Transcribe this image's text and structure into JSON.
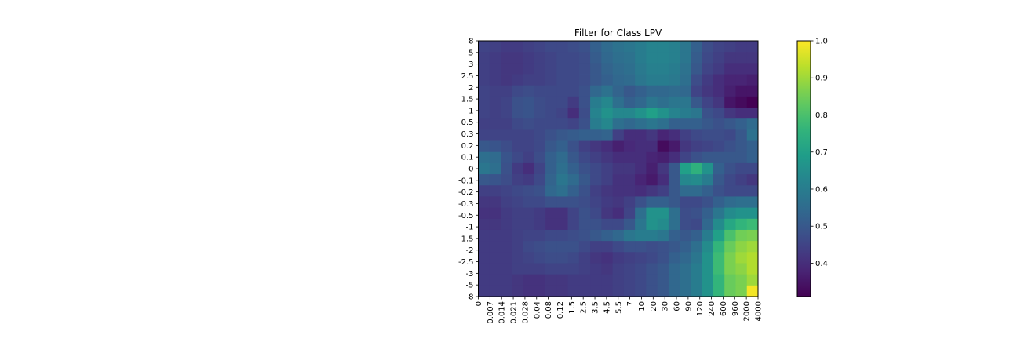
{
  "chart_data": {
    "type": "heatmap",
    "title": "Filter for Class LPV",
    "xlabel": "",
    "ylabel": "",
    "x_labels": [
      "0",
      "0.007",
      "0.014",
      "0.021",
      "0.028",
      "0.04",
      "0.08",
      "0.12",
      "1.5",
      "2.5",
      "3.5",
      "4.5",
      "5.5",
      "7",
      "10",
      "20",
      "30",
      "60",
      "90",
      "120",
      "240",
      "600",
      "960",
      "2000",
      "4000"
    ],
    "y_labels": [
      "8",
      "5",
      "3",
      "2.5",
      "2",
      "1.5",
      "1",
      "0.5",
      "0.3",
      "0.2",
      "0.1",
      "0",
      "-0.1",
      "-0.2",
      "-0.3",
      "-0.5",
      "-1",
      "-1.5",
      "-2",
      "-2.5",
      "-3",
      "-5",
      "-8"
    ],
    "colormap": "viridis",
    "colorbar": {
      "min": 0.31,
      "max": 1.0,
      "ticks": [
        "0.4",
        "0.5",
        "0.6",
        "0.7",
        "0.8",
        "0.9",
        "1.0"
      ],
      "tick_values": [
        0.4,
        0.5,
        0.6,
        0.7,
        0.8,
        0.9,
        1.0
      ]
    },
    "values": [
      [
        0.45,
        0.44,
        0.43,
        0.43,
        0.44,
        0.45,
        0.46,
        0.46,
        0.47,
        0.48,
        0.52,
        0.55,
        0.57,
        0.58,
        0.6,
        0.62,
        0.62,
        0.61,
        0.58,
        0.52,
        0.47,
        0.45,
        0.44,
        0.43,
        0.43
      ],
      [
        0.44,
        0.43,
        0.42,
        0.42,
        0.43,
        0.44,
        0.45,
        0.46,
        0.46,
        0.47,
        0.51,
        0.54,
        0.56,
        0.57,
        0.6,
        0.62,
        0.62,
        0.61,
        0.58,
        0.51,
        0.46,
        0.44,
        0.42,
        0.42,
        0.42
      ],
      [
        0.44,
        0.43,
        0.42,
        0.42,
        0.43,
        0.44,
        0.45,
        0.46,
        0.46,
        0.47,
        0.5,
        0.53,
        0.55,
        0.56,
        0.59,
        0.61,
        0.61,
        0.6,
        0.57,
        0.5,
        0.45,
        0.43,
        0.4,
        0.4,
        0.4
      ],
      [
        0.44,
        0.43,
        0.42,
        0.43,
        0.44,
        0.44,
        0.45,
        0.46,
        0.46,
        0.47,
        0.5,
        0.52,
        0.54,
        0.55,
        0.58,
        0.6,
        0.6,
        0.59,
        0.56,
        0.47,
        0.43,
        0.4,
        0.38,
        0.38,
        0.37
      ],
      [
        0.45,
        0.44,
        0.44,
        0.46,
        0.47,
        0.46,
        0.46,
        0.46,
        0.46,
        0.48,
        0.54,
        0.57,
        0.53,
        0.5,
        0.52,
        0.54,
        0.54,
        0.55,
        0.54,
        0.45,
        0.42,
        0.4,
        0.37,
        0.35,
        0.35
      ],
      [
        0.45,
        0.44,
        0.45,
        0.48,
        0.49,
        0.47,
        0.46,
        0.46,
        0.43,
        0.48,
        0.6,
        0.63,
        0.56,
        0.52,
        0.54,
        0.58,
        0.56,
        0.58,
        0.58,
        0.5,
        0.45,
        0.42,
        0.35,
        0.33,
        0.31
      ],
      [
        0.45,
        0.44,
        0.45,
        0.48,
        0.49,
        0.47,
        0.46,
        0.45,
        0.4,
        0.47,
        0.62,
        0.66,
        0.63,
        0.63,
        0.66,
        0.7,
        0.66,
        0.62,
        0.6,
        0.58,
        0.48,
        0.46,
        0.42,
        0.4,
        0.4
      ],
      [
        0.44,
        0.44,
        0.44,
        0.46,
        0.47,
        0.46,
        0.46,
        0.46,
        0.45,
        0.48,
        0.6,
        0.63,
        0.56,
        0.54,
        0.56,
        0.58,
        0.56,
        0.52,
        0.52,
        0.52,
        0.5,
        0.48,
        0.5,
        0.52,
        0.55
      ],
      [
        0.45,
        0.45,
        0.45,
        0.45,
        0.45,
        0.46,
        0.48,
        0.5,
        0.51,
        0.52,
        0.52,
        0.53,
        0.44,
        0.4,
        0.4,
        0.42,
        0.38,
        0.4,
        0.44,
        0.46,
        0.47,
        0.47,
        0.46,
        0.5,
        0.57
      ],
      [
        0.5,
        0.49,
        0.47,
        0.45,
        0.45,
        0.46,
        0.5,
        0.52,
        0.48,
        0.44,
        0.42,
        0.4,
        0.37,
        0.39,
        0.4,
        0.4,
        0.33,
        0.36,
        0.42,
        0.44,
        0.45,
        0.46,
        0.48,
        0.5,
        0.52
      ],
      [
        0.56,
        0.55,
        0.49,
        0.46,
        0.44,
        0.47,
        0.52,
        0.55,
        0.5,
        0.46,
        0.44,
        0.42,
        0.4,
        0.4,
        0.4,
        0.38,
        0.37,
        0.4,
        0.45,
        0.48,
        0.5,
        0.5,
        0.5,
        0.5,
        0.52
      ],
      [
        0.58,
        0.56,
        0.48,
        0.43,
        0.4,
        0.45,
        0.52,
        0.56,
        0.52,
        0.48,
        0.46,
        0.44,
        0.42,
        0.42,
        0.4,
        0.37,
        0.42,
        0.5,
        0.7,
        0.75,
        0.66,
        0.52,
        0.48,
        0.46,
        0.46
      ],
      [
        0.5,
        0.49,
        0.47,
        0.44,
        0.43,
        0.46,
        0.53,
        0.58,
        0.55,
        0.5,
        0.46,
        0.44,
        0.41,
        0.41,
        0.38,
        0.36,
        0.4,
        0.5,
        0.63,
        0.64,
        0.6,
        0.5,
        0.46,
        0.44,
        0.42
      ],
      [
        0.44,
        0.44,
        0.45,
        0.46,
        0.47,
        0.48,
        0.54,
        0.56,
        0.52,
        0.48,
        0.44,
        0.42,
        0.41,
        0.41,
        0.4,
        0.42,
        0.44,
        0.5,
        0.55,
        0.55,
        0.52,
        0.48,
        0.46,
        0.46,
        0.46
      ],
      [
        0.42,
        0.42,
        0.44,
        0.45,
        0.46,
        0.46,
        0.48,
        0.48,
        0.48,
        0.47,
        0.45,
        0.43,
        0.42,
        0.44,
        0.48,
        0.52,
        0.52,
        0.5,
        0.46,
        0.46,
        0.48,
        0.52,
        0.55,
        0.56,
        0.56
      ],
      [
        0.41,
        0.41,
        0.43,
        0.44,
        0.44,
        0.43,
        0.41,
        0.41,
        0.45,
        0.48,
        0.46,
        0.42,
        0.4,
        0.45,
        0.56,
        0.66,
        0.66,
        0.56,
        0.47,
        0.48,
        0.52,
        0.58,
        0.64,
        0.66,
        0.66
      ],
      [
        0.42,
        0.42,
        0.43,
        0.44,
        0.44,
        0.43,
        0.41,
        0.41,
        0.45,
        0.48,
        0.48,
        0.46,
        0.46,
        0.5,
        0.58,
        0.66,
        0.64,
        0.56,
        0.47,
        0.46,
        0.54,
        0.64,
        0.72,
        0.76,
        0.78
      ],
      [
        0.43,
        0.43,
        0.43,
        0.44,
        0.45,
        0.45,
        0.46,
        0.46,
        0.47,
        0.48,
        0.5,
        0.52,
        0.54,
        0.58,
        0.6,
        0.6,
        0.58,
        0.52,
        0.5,
        0.52,
        0.6,
        0.7,
        0.8,
        0.85,
        0.86
      ],
      [
        0.43,
        0.43,
        0.43,
        0.44,
        0.46,
        0.47,
        0.48,
        0.48,
        0.48,
        0.46,
        0.44,
        0.44,
        0.46,
        0.48,
        0.48,
        0.47,
        0.48,
        0.5,
        0.52,
        0.56,
        0.64,
        0.76,
        0.84,
        0.88,
        0.9
      ],
      [
        0.43,
        0.43,
        0.43,
        0.44,
        0.45,
        0.46,
        0.47,
        0.47,
        0.46,
        0.44,
        0.42,
        0.41,
        0.43,
        0.44,
        0.45,
        0.46,
        0.48,
        0.52,
        0.54,
        0.58,
        0.66,
        0.78,
        0.86,
        0.9,
        0.92
      ],
      [
        0.43,
        0.43,
        0.43,
        0.44,
        0.44,
        0.44,
        0.45,
        0.45,
        0.45,
        0.44,
        0.43,
        0.42,
        0.44,
        0.45,
        0.46,
        0.48,
        0.5,
        0.54,
        0.56,
        0.6,
        0.66,
        0.78,
        0.86,
        0.88,
        0.92
      ],
      [
        0.43,
        0.43,
        0.43,
        0.42,
        0.41,
        0.41,
        0.42,
        0.42,
        0.43,
        0.43,
        0.43,
        0.43,
        0.44,
        0.45,
        0.46,
        0.48,
        0.5,
        0.54,
        0.56,
        0.6,
        0.66,
        0.76,
        0.84,
        0.86,
        0.9
      ],
      [
        0.43,
        0.43,
        0.43,
        0.42,
        0.41,
        0.41,
        0.42,
        0.42,
        0.43,
        0.43,
        0.43,
        0.43,
        0.44,
        0.45,
        0.46,
        0.48,
        0.5,
        0.54,
        0.56,
        0.6,
        0.66,
        0.76,
        0.84,
        0.86,
        0.99
      ]
    ]
  }
}
